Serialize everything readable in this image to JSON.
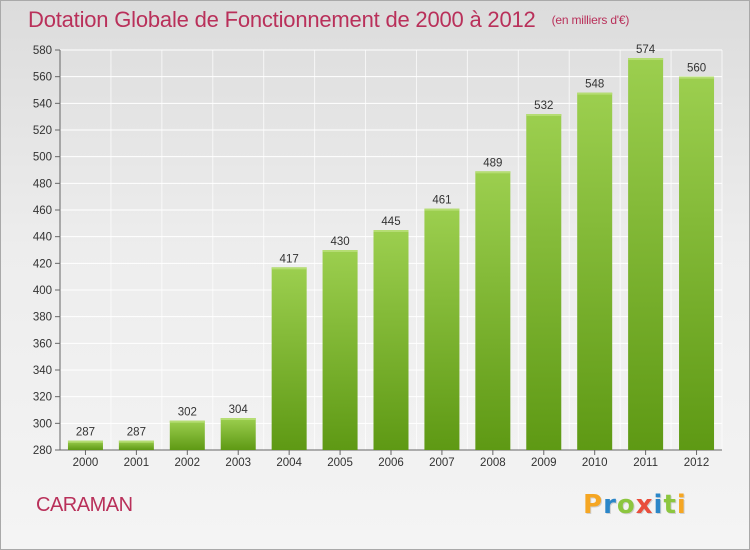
{
  "title": "Dotation Globale de Fonctionnement de 2000 à 2012",
  "unit_note": "(en milliers d'€)",
  "commune": "CARAMAN",
  "logo": {
    "text": "Proxiti",
    "letters": [
      {
        "ch": "P",
        "color": "#f5a623"
      },
      {
        "ch": "r",
        "color": "#2b86c8"
      },
      {
        "ch": "o",
        "color": "#8cc63f"
      },
      {
        "ch": "x",
        "color": "#e94e3c"
      },
      {
        "ch": "i",
        "color": "#2b86c8"
      },
      {
        "ch": "t",
        "color": "#8cc63f"
      },
      {
        "ch": "i",
        "color": "#f5a623"
      }
    ]
  },
  "colors": {
    "title": "#b9305a",
    "bar_light": "#9ccf4f",
    "bar_dark": "#5e9914",
    "grid": "#ffffff"
  },
  "chart_data": {
    "type": "bar",
    "title": "Dotation Globale de Fonctionnement de 2000 à 2012",
    "subtitle": "(en milliers d'€)",
    "categories": [
      "2000",
      "2001",
      "2002",
      "2003",
      "2004",
      "2005",
      "2006",
      "2007",
      "2008",
      "2009",
      "2010",
      "2011",
      "2012"
    ],
    "values": [
      287,
      287,
      302,
      304,
      417,
      430,
      445,
      461,
      489,
      532,
      548,
      574,
      560
    ],
    "ylim": [
      280,
      580
    ],
    "yticks": [
      280,
      300,
      320,
      340,
      360,
      380,
      400,
      420,
      440,
      460,
      480,
      500,
      520,
      540,
      560,
      580
    ],
    "ytick_labels": [
      "280",
      "300",
      "320",
      "340",
      "360",
      "380",
      "400",
      "420",
      "440",
      "460",
      "480",
      "500",
      "520",
      "540",
      "560",
      "580"
    ],
    "grid": true,
    "xlabel": "",
    "ylabel": ""
  }
}
